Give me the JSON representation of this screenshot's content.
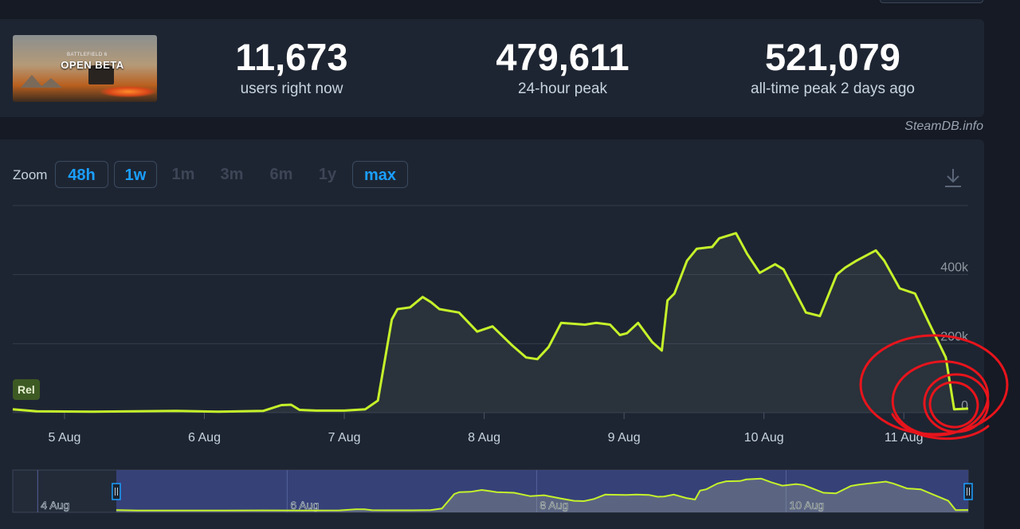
{
  "stats": {
    "game_name": "OPEN BETA",
    "game_subtitle": "BATTLEFIELD 6",
    "current": {
      "value": "11,673",
      "label": "users right now"
    },
    "peak24": {
      "value": "479,611",
      "label": "24-hour peak"
    },
    "alltime": {
      "value": "521,079",
      "label": "all-time peak 2 days ago"
    }
  },
  "brand": "SteamDB.info",
  "zoom": {
    "label": "Zoom",
    "options": [
      {
        "label": "48h",
        "active": true
      },
      {
        "label": "1w",
        "active": true
      },
      {
        "label": "1m",
        "active": false
      },
      {
        "label": "3m",
        "active": false
      },
      {
        "label": "6m",
        "active": false
      },
      {
        "label": "1y",
        "active": false
      },
      {
        "label": "max",
        "active": true
      }
    ]
  },
  "download_icon": "download-icon",
  "rel_badge": "Rel",
  "colors": {
    "line": "#c5f22a",
    "accent": "#1a9fff",
    "annotation": "#e8141c",
    "navigator_bg": "#3a4584"
  },
  "chart_data": {
    "type": "line",
    "x_tick_labels": [
      "5 Aug",
      "6 Aug",
      "7 Aug",
      "8 Aug",
      "9 Aug",
      "10 Aug",
      "11 Aug"
    ],
    "y_tick_labels": [
      "0",
      "200k",
      "400k"
    ],
    "ylim": [
      0,
      600000
    ],
    "x_range_days": [
      4.63,
      11.46
    ],
    "series": [
      {
        "values": [
          [
            4.63,
            10000
          ],
          [
            4.8,
            4000
          ],
          [
            5.2,
            3000
          ],
          [
            5.5,
            4000
          ],
          [
            5.8,
            5000
          ],
          [
            6.1,
            3000
          ],
          [
            6.42,
            5000
          ],
          [
            6.55,
            22000
          ],
          [
            6.62,
            23000
          ],
          [
            6.68,
            8000
          ],
          [
            6.8,
            6000
          ],
          [
            7.0,
            6000
          ],
          [
            7.15,
            10000
          ],
          [
            7.24,
            35000
          ],
          [
            7.34,
            270000
          ],
          [
            7.38,
            300000
          ],
          [
            7.47,
            305000
          ],
          [
            7.56,
            335000
          ],
          [
            7.62,
            320000
          ],
          [
            7.68,
            300000
          ],
          [
            7.82,
            290000
          ],
          [
            7.95,
            235000
          ],
          [
            8.06,
            250000
          ],
          [
            8.2,
            195000
          ],
          [
            8.3,
            160000
          ],
          [
            8.38,
            155000
          ],
          [
            8.46,
            190000
          ],
          [
            8.55,
            260000
          ],
          [
            8.72,
            255000
          ],
          [
            8.8,
            260000
          ],
          [
            8.9,
            255000
          ],
          [
            8.97,
            225000
          ],
          [
            9.02,
            230000
          ],
          [
            9.1,
            260000
          ],
          [
            9.2,
            205000
          ],
          [
            9.27,
            180000
          ],
          [
            9.31,
            325000
          ],
          [
            9.36,
            345000
          ],
          [
            9.45,
            440000
          ],
          [
            9.52,
            475000
          ],
          [
            9.63,
            480000
          ],
          [
            9.68,
            505000
          ],
          [
            9.8,
            520000
          ],
          [
            9.88,
            460000
          ],
          [
            9.97,
            405000
          ],
          [
            10.08,
            430000
          ],
          [
            10.14,
            415000
          ],
          [
            10.3,
            290000
          ],
          [
            10.4,
            280000
          ],
          [
            10.52,
            400000
          ],
          [
            10.58,
            420000
          ],
          [
            10.66,
            440000
          ],
          [
            10.8,
            470000
          ],
          [
            10.86,
            440000
          ],
          [
            10.97,
            360000
          ],
          [
            11.08,
            345000
          ],
          [
            11.18,
            260000
          ],
          [
            11.3,
            160000
          ],
          [
            11.36,
            10000
          ],
          [
            11.46,
            11673
          ]
        ]
      }
    ],
    "navigator": {
      "tick_labels": [
        "4 Aug",
        "6 Aug",
        "8 Aug",
        "10 Aug"
      ],
      "range_days": [
        3.8,
        11.46
      ],
      "selected_days": [
        4.63,
        11.46
      ]
    },
    "grid": true
  }
}
